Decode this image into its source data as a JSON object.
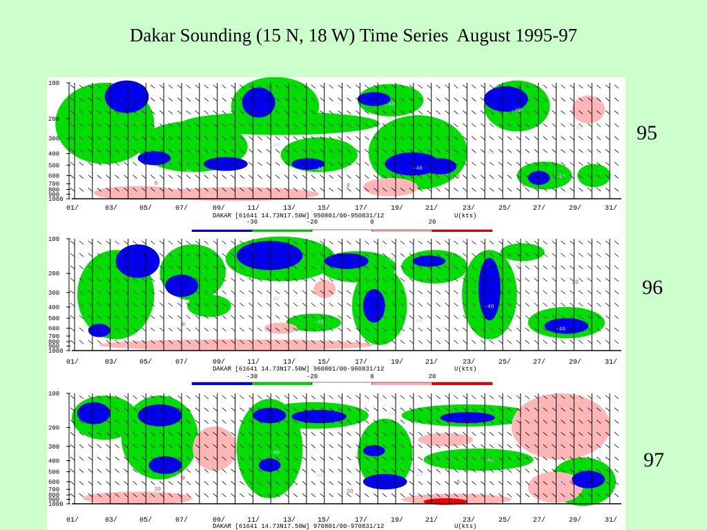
{
  "title": "Dakar Sounding (15 N, 18 W) Time Series  August 1995-97",
  "chart_data": [
    {
      "type": "heatmap",
      "year_label": "95",
      "caption": "DAKAR [61641 14.73N17.50W] 950801/00-950831/12",
      "variable_label": "U(kts)",
      "y_ticks": [
        "100",
        "200",
        "300",
        "400",
        "500",
        "600",
        "700",
        "800",
        "900",
        "1000"
      ],
      "x_ticks": [
        "01/",
        "03/",
        "05/",
        "07/",
        "09/",
        "11/",
        "13/",
        "15/",
        "17/",
        "19/",
        "21/",
        "23/",
        "25/",
        "27/",
        "29/",
        "31/"
      ],
      "contour_labels": [
        "-40",
        "-40",
        "-40",
        "-40",
        "-40",
        "-40",
        "-40",
        "-40",
        "-40",
        "0",
        "0",
        "0",
        "0"
      ],
      "color_scale": {
        "ticks": [
          "-30",
          "-20",
          "0",
          "20"
        ],
        "colors": [
          "#0000ee",
          "#00dd00",
          "#ffffff",
          "#ffaaaa",
          "#ee0000"
        ]
      }
    },
    {
      "type": "heatmap",
      "year_label": "96",
      "caption": "DAKAR [61641 14.73N17.50W] 960801/00-960831/12",
      "variable_label": "U(kts)",
      "y_ticks": [
        "100",
        "200",
        "300",
        "400",
        "500",
        "600",
        "700",
        "800",
        "900",
        "1000"
      ],
      "x_ticks": [
        "01/",
        "03/",
        "05/",
        "07/",
        "09/",
        "11/",
        "13/",
        "15/",
        "17/",
        "19/",
        "21/",
        "23/",
        "25/",
        "27/",
        "29/",
        "31/"
      ],
      "contour_labels": [
        "-40",
        "-40",
        "-40",
        "-40",
        "-40",
        "-40",
        "-40",
        "20",
        "0"
      ],
      "color_scale": {
        "ticks": [
          "-30",
          "-20",
          "0",
          "20"
        ],
        "colors": [
          "#0000ee",
          "#00dd00",
          "#ffffff",
          "#ffaaaa",
          "#ee0000"
        ]
      }
    },
    {
      "type": "heatmap",
      "year_label": "97",
      "caption": "DAKAR [61641 14.73N17.50W] 970801/00-970831/12",
      "variable_label": "U(kts)",
      "y_ticks": [
        "100",
        "200",
        "300",
        "400",
        "500",
        "600",
        "700",
        "800",
        "900",
        "1000"
      ],
      "x_ticks": [
        "01/",
        "03/",
        "05/",
        "07/",
        "09/",
        "11/",
        "13/",
        "15/",
        "17/",
        "19/",
        "21/",
        "23/",
        "25/",
        "27/",
        "29/",
        "31/"
      ],
      "contour_labels": [
        "-40",
        "-40",
        "-40",
        "-40",
        "-20",
        "-40",
        "-40",
        "0",
        "0",
        "0",
        "20",
        "20"
      ]
    }
  ]
}
